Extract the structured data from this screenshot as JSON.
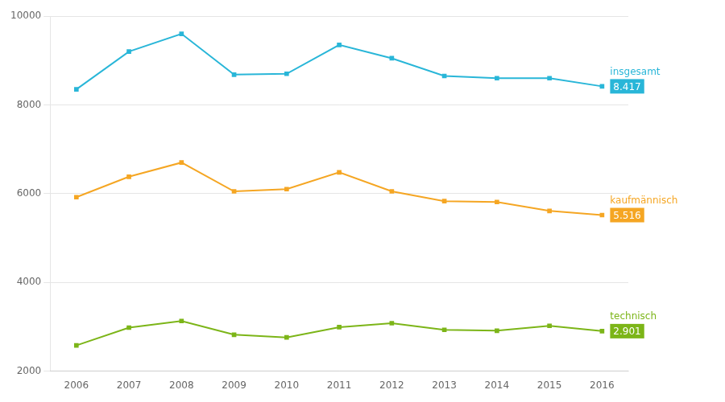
{
  "chart_data": {
    "type": "line",
    "x": [
      2006,
      2007,
      2008,
      2009,
      2010,
      2011,
      2012,
      2013,
      2014,
      2015,
      2016
    ],
    "series": [
      {
        "name": "insgesamt",
        "color": "#29b6d8",
        "marker": "square",
        "values": [
          8350,
          9200,
          9600,
          8680,
          8700,
          9350,
          9050,
          8650,
          8600,
          8600,
          8417
        ],
        "value_labels": [
          null,
          null,
          null,
          null,
          null,
          null,
          null,
          null,
          null,
          null,
          "8.417"
        ]
      },
      {
        "name": "kaufmännisch",
        "color": "#f5a623",
        "marker": "square",
        "values": [
          5920,
          6380,
          6700,
          6050,
          6100,
          6480,
          6050,
          5830,
          5810,
          5610,
          5516
        ],
        "value_labels": [
          null,
          null,
          null,
          null,
          null,
          null,
          null,
          null,
          null,
          null,
          "5.516"
        ]
      },
      {
        "name": "technisch",
        "color": "#7cb518",
        "marker": "square",
        "values": [
          2580,
          2980,
          3130,
          2820,
          2760,
          2990,
          3080,
          2930,
          2910,
          3020,
          2901
        ],
        "value_labels": [
          null,
          null,
          null,
          null,
          null,
          null,
          null,
          null,
          null,
          null,
          "2.901"
        ]
      }
    ],
    "xlim": [
      2005.5,
      2016.5
    ],
    "xticks": [
      2006,
      2007,
      2008,
      2009,
      2010,
      2011,
      2012,
      2013,
      2014,
      2015,
      2016
    ],
    "ylim": [
      2000,
      10000
    ],
    "yticks": [
      2000,
      4000,
      6000,
      8000,
      10000
    ],
    "grid": "y"
  }
}
